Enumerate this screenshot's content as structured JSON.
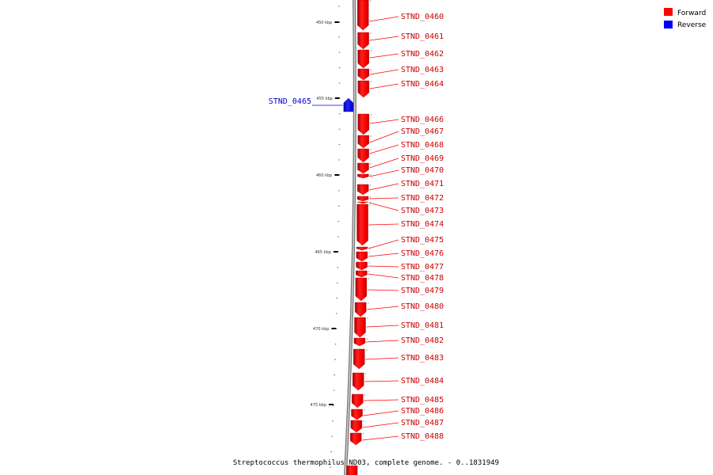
{
  "caption": "Streptococcus thermophilus ND03, complete genome. - 0..1831949",
  "legend": [
    {
      "label": "Forward",
      "color": "#ff0000"
    },
    {
      "label": "Reverse",
      "color": "#0000ff"
    }
  ],
  "scale": {
    "unit": "kbp",
    "major_ticks": [
      "450 kbp",
      "455 kbp",
      "460 kbp",
      "465 kbp",
      "470 kbp",
      "475 kbp"
    ]
  },
  "genes": [
    {
      "name": "STND_0460",
      "strand": "forward"
    },
    {
      "name": "STND_0461",
      "strand": "forward"
    },
    {
      "name": "STND_0462",
      "strand": "forward"
    },
    {
      "name": "STND_0463",
      "strand": "forward"
    },
    {
      "name": "STND_0464",
      "strand": "forward"
    },
    {
      "name": "STND_0465",
      "strand": "reverse"
    },
    {
      "name": "STND_0466",
      "strand": "forward"
    },
    {
      "name": "STND_0467",
      "strand": "forward"
    },
    {
      "name": "STND_0468",
      "strand": "forward"
    },
    {
      "name": "STND_0469",
      "strand": "forward"
    },
    {
      "name": "STND_0470",
      "strand": "forward"
    },
    {
      "name": "STND_0471",
      "strand": "forward"
    },
    {
      "name": "STND_0472",
      "strand": "forward"
    },
    {
      "name": "STND_0473",
      "strand": "forward"
    },
    {
      "name": "STND_0474",
      "strand": "forward"
    },
    {
      "name": "STND_0475",
      "strand": "forward"
    },
    {
      "name": "STND_0476",
      "strand": "forward"
    },
    {
      "name": "STND_0477",
      "strand": "forward"
    },
    {
      "name": "STND_0478",
      "strand": "forward"
    },
    {
      "name": "STND_0479",
      "strand": "forward"
    },
    {
      "name": "STND_0480",
      "strand": "forward"
    },
    {
      "name": "STND_0481",
      "strand": "forward"
    },
    {
      "name": "STND_0482",
      "strand": "forward"
    },
    {
      "name": "STND_0483",
      "strand": "forward"
    },
    {
      "name": "STND_0484",
      "strand": "forward"
    },
    {
      "name": "STND_0485",
      "strand": "forward"
    },
    {
      "name": "STND_0486",
      "strand": "forward"
    },
    {
      "name": "STND_0487",
      "strand": "forward"
    },
    {
      "name": "STND_0488",
      "strand": "forward"
    }
  ]
}
